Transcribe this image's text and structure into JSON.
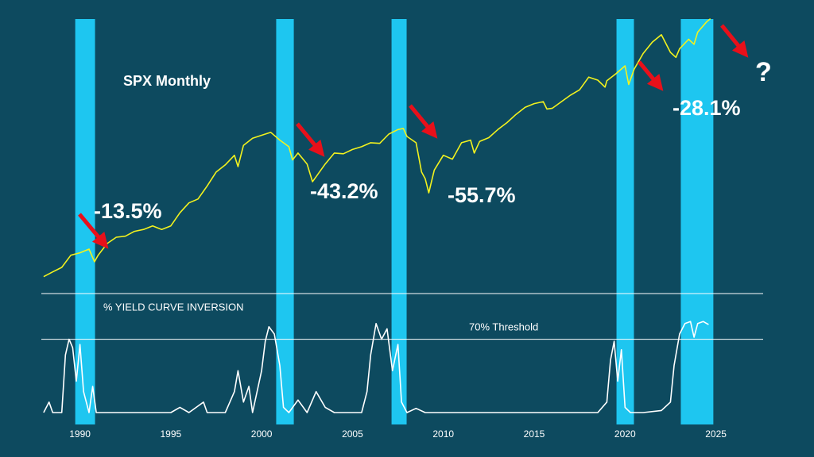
{
  "chart_data": [
    {
      "type": "line",
      "title": "SPX Monthly",
      "color": "#f2f21e",
      "log_scale": true,
      "xlim": [
        1985.6,
        2030.4
      ],
      "xticks": [
        1990,
        1995,
        2000,
        2005,
        2010,
        2015,
        2020,
        2025
      ],
      "ylim": [
        240,
        5900
      ],
      "highlights": [
        [
          1989.74,
          1990.83
        ],
        [
          2000.8,
          2001.77
        ],
        [
          2007.15,
          2007.98
        ],
        [
          2019.53,
          2020.49
        ],
        [
          2023.07,
          2024.86
        ]
      ],
      "highlight_color": "#1ec6f0",
      "annotations": [
        "-13.5%",
        "-43.2%",
        "-55.7%",
        "-28.1%",
        "?"
      ],
      "x": [
        1988.0,
        1988.5,
        1989.0,
        1989.5,
        1990.0,
        1990.5,
        1990.8,
        1991.0,
        1991.5,
        1992.0,
        1992.5,
        1993.0,
        1993.5,
        1994.0,
        1994.5,
        1995.0,
        1995.5,
        1996.0,
        1996.5,
        1997.0,
        1997.5,
        1998.0,
        1998.5,
        1998.7,
        1999.0,
        1999.5,
        2000.0,
        2000.5,
        2001.0,
        2001.5,
        2001.7,
        2002.0,
        2002.5,
        2002.8,
        2003.0,
        2003.5,
        2004.0,
        2004.5,
        2005.0,
        2005.5,
        2006.0,
        2006.5,
        2007.0,
        2007.5,
        2007.8,
        2008.0,
        2008.5,
        2008.8,
        2009.0,
        2009.2,
        2009.5,
        2010.0,
        2010.5,
        2011.0,
        2011.5,
        2011.7,
        2012.0,
        2012.5,
        2013.0,
        2013.5,
        2014.0,
        2014.5,
        2015.0,
        2015.5,
        2015.7,
        2016.0,
        2016.5,
        2017.0,
        2017.5,
        2018.0,
        2018.5,
        2018.9,
        2019.0,
        2019.5,
        2020.0,
        2020.2,
        2020.5,
        2021.0,
        2021.5,
        2022.0,
        2022.5,
        2022.8,
        2023.0,
        2023.5,
        2023.8,
        2024.0,
        2024.5,
        2024.7
      ],
      "values": [
        255,
        270,
        285,
        330,
        340,
        355,
        305,
        330,
        380,
        410,
        415,
        440,
        450,
        470,
        450,
        470,
        550,
        620,
        650,
        760,
        900,
        980,
        1100,
        960,
        1240,
        1350,
        1400,
        1450,
        1320,
        1220,
        1040,
        1130,
        990,
        800,
        850,
        990,
        1130,
        1120,
        1180,
        1220,
        1280,
        1270,
        1420,
        1500,
        1520,
        1380,
        1280,
        900,
        830,
        700,
        920,
        1100,
        1050,
        1280,
        1320,
        1130,
        1300,
        1360,
        1500,
        1630,
        1800,
        1960,
        2050,
        2100,
        1920,
        1940,
        2100,
        2270,
        2420,
        2820,
        2720,
        2500,
        2700,
        2940,
        3230,
        2580,
        3100,
        3750,
        4300,
        4700,
        3800,
        3580,
        3970,
        4450,
        4190,
        4850,
        5500,
        5700
      ]
    },
    {
      "type": "line",
      "title": "% YIELD CURVE INVERSION",
      "color": "#ffffff",
      "xlim": [
        1985.6,
        2030.4
      ],
      "ylim": [
        0,
        100
      ],
      "threshold": {
        "value": 70,
        "label": "70% Threshold"
      },
      "x": [
        1988.0,
        1988.3,
        1988.5,
        1989.0,
        1989.2,
        1989.4,
        1989.6,
        1989.8,
        1990.0,
        1990.2,
        1990.5,
        1990.7,
        1990.9,
        1991.5,
        1995.0,
        1995.5,
        1996.0,
        1996.8,
        1997.0,
        1998.0,
        1998.5,
        1998.7,
        1999.0,
        1999.3,
        1999.5,
        2000.0,
        2000.2,
        2000.4,
        2000.7,
        2001.0,
        2001.2,
        2001.5,
        2002.0,
        2002.5,
        2003.0,
        2003.5,
        2004.0,
        2005.5,
        2005.8,
        2006.0,
        2006.3,
        2006.6,
        2006.9,
        2007.2,
        2007.5,
        2007.7,
        2008.0,
        2008.5,
        2009.0,
        2018.5,
        2019.0,
        2019.2,
        2019.4,
        2019.6,
        2019.8,
        2020.0,
        2020.3,
        2021.0,
        2022.0,
        2022.5,
        2022.7,
        2023.0,
        2023.3,
        2023.6,
        2023.8,
        2024.0,
        2024.3,
        2024.6
      ],
      "values": [
        0,
        10,
        0,
        0,
        55,
        70,
        62,
        30,
        65,
        20,
        0,
        25,
        0,
        0,
        0,
        5,
        0,
        10,
        0,
        0,
        20,
        40,
        10,
        25,
        0,
        40,
        68,
        82,
        75,
        45,
        5,
        0,
        12,
        0,
        20,
        5,
        0,
        0,
        20,
        55,
        85,
        70,
        80,
        40,
        65,
        10,
        0,
        4,
        0,
        0,
        10,
        50,
        68,
        30,
        60,
        5,
        0,
        0,
        2,
        10,
        45,
        75,
        85,
        87,
        72,
        85,
        87,
        84
      ]
    }
  ]
}
